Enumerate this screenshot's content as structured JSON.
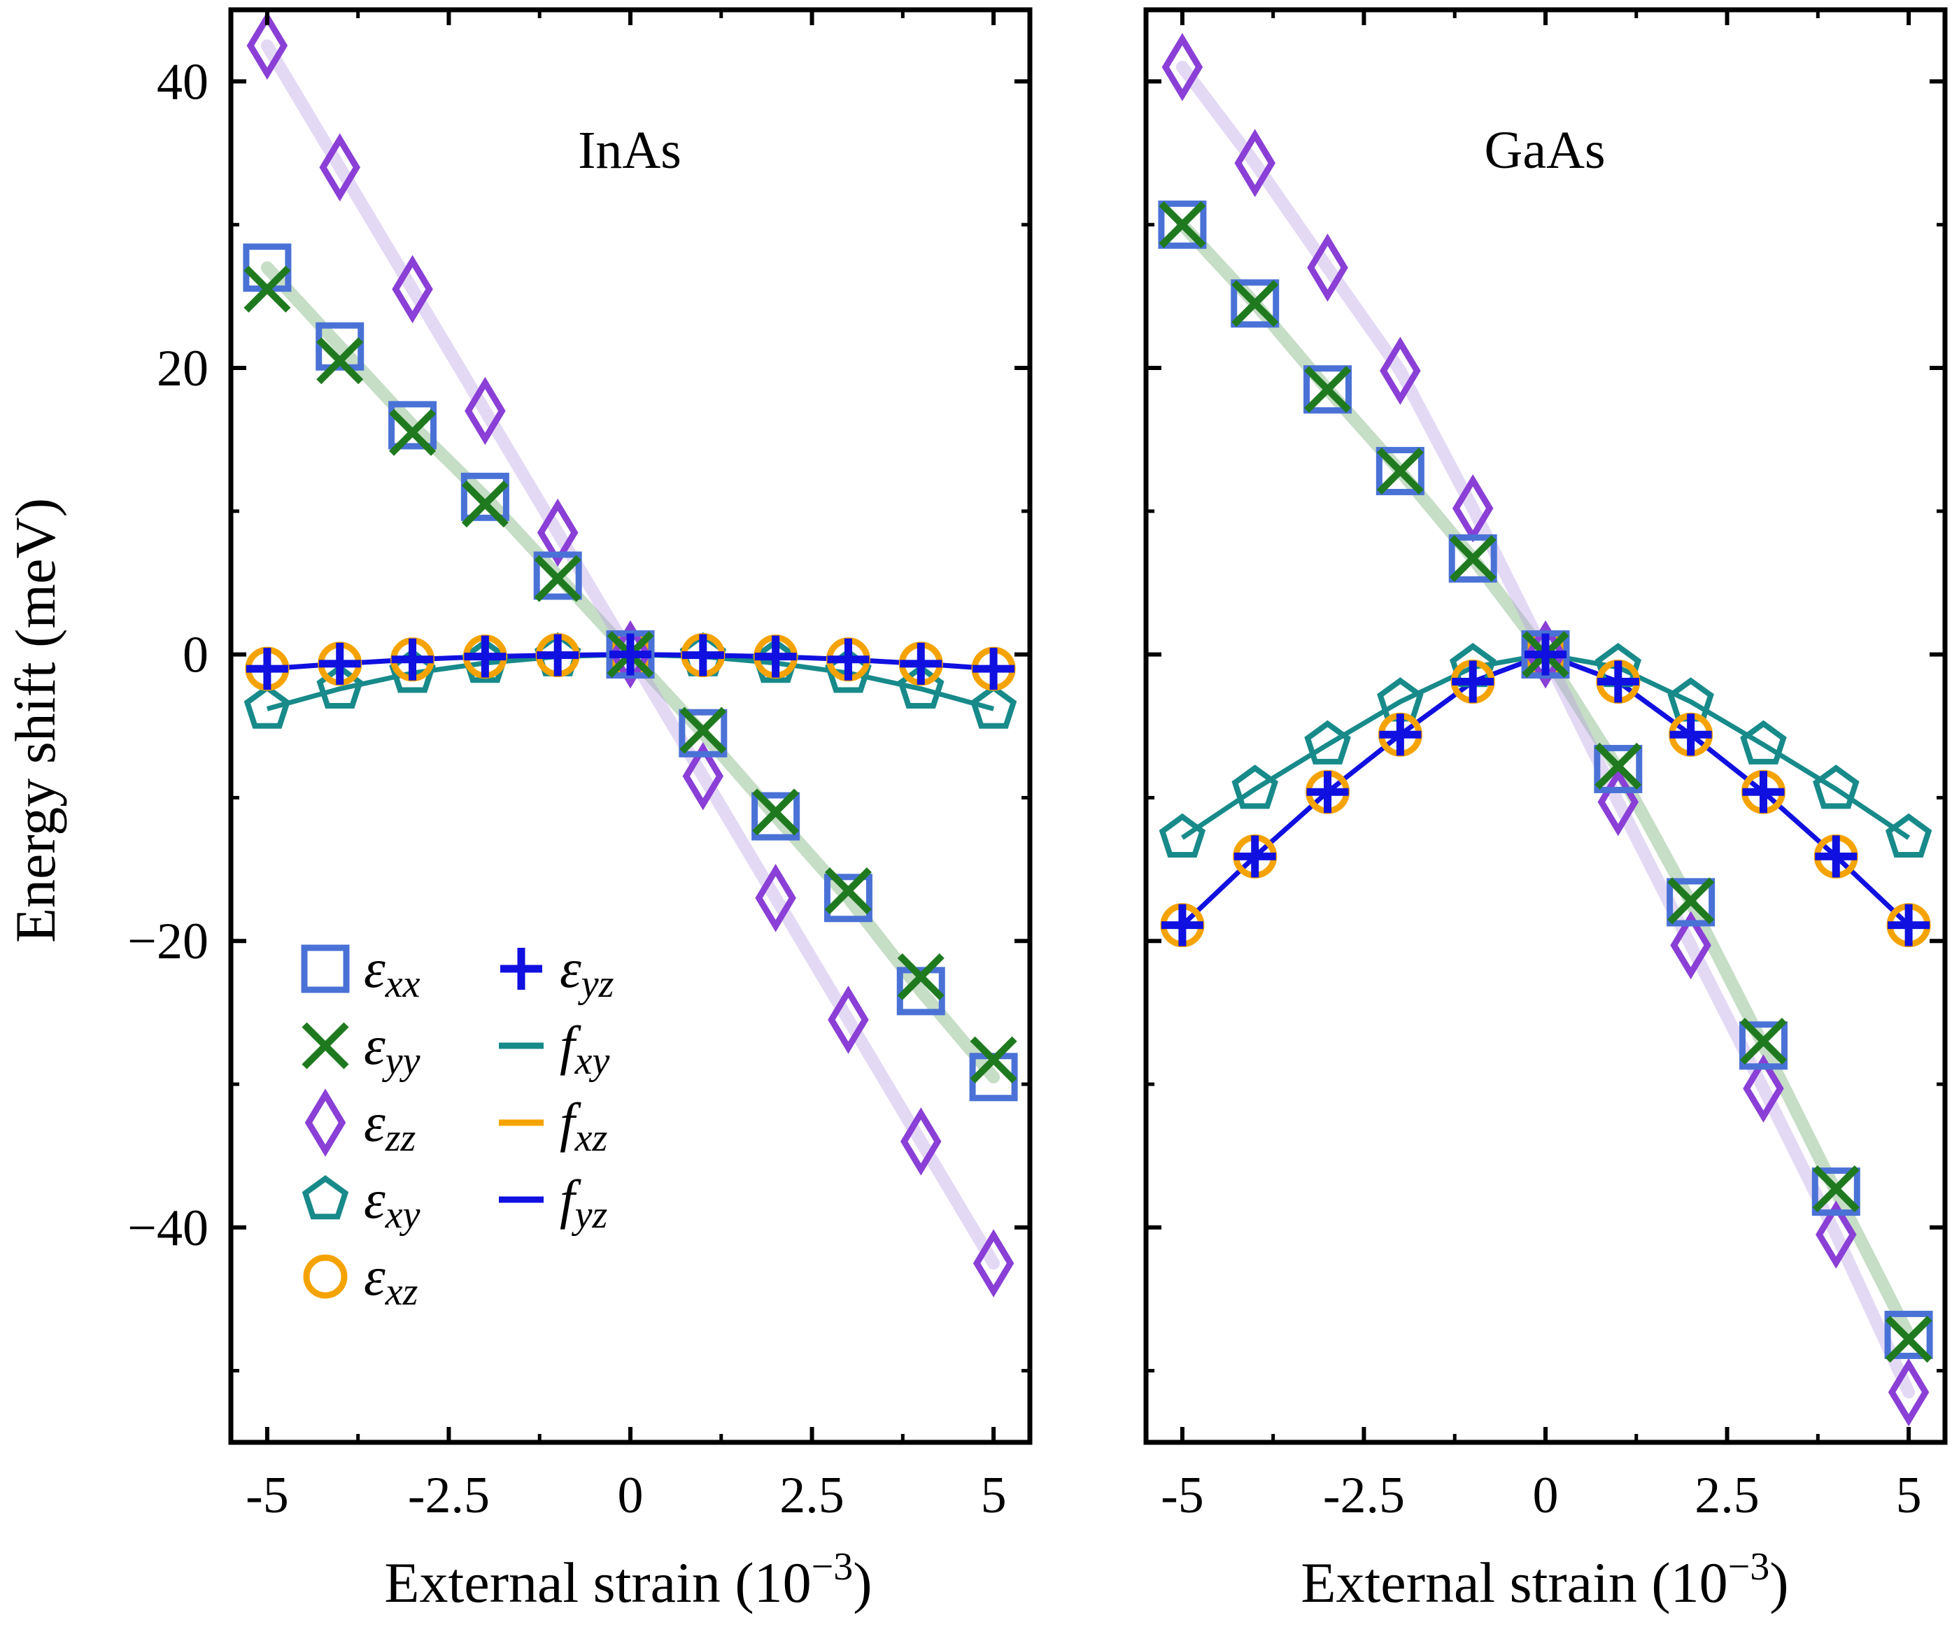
{
  "colors": {
    "exx": "#4a72d6",
    "eyy": "#1f7a1f",
    "ezz": "#8a3fd6",
    "exy": "#188a8a",
    "exz": "#f5a300",
    "eyz": "#1010e0",
    "fxy_line": "#188a8a",
    "fxz_line": "#f5a300",
    "fyz_line": "#1010e0",
    "green_band": "#6aa56a",
    "purple_band": "#b79be6"
  },
  "figure": {
    "ylabel": "Energy shift (meV)",
    "xlabel_text": "External strain (10",
    "xlabel_exponent": "−3",
    "xlabel_close": ")"
  },
  "legend": {
    "entries": [
      {
        "key": "exx",
        "symbol": "ε",
        "sub": "xx",
        "marker": "square"
      },
      {
        "key": "eyy",
        "symbol": "ε",
        "sub": "yy",
        "marker": "x"
      },
      {
        "key": "ezz",
        "symbol": "ε",
        "sub": "zz",
        "marker": "diamond"
      },
      {
        "key": "exy",
        "symbol": "ε",
        "sub": "xy",
        "marker": "pentagon"
      },
      {
        "key": "exz",
        "symbol": "ε",
        "sub": "xz",
        "marker": "circle"
      },
      {
        "key": "eyz",
        "symbol": "ε",
        "sub": "yz",
        "marker": "plus"
      },
      {
        "key": "fxy",
        "symbol": "f",
        "sub": "xy",
        "marker": "line"
      },
      {
        "key": "fxz",
        "symbol": "f",
        "sub": "xz",
        "marker": "line"
      },
      {
        "key": "fyz",
        "symbol": "f",
        "sub": "yz",
        "marker": "line"
      }
    ]
  },
  "chart_data": [
    {
      "type": "scatter",
      "title": "InAs",
      "xlabel": "External strain (10^-3)",
      "ylabel": "Energy shift (meV)",
      "xlim": [
        -5.5,
        5.5
      ],
      "ylim": [
        -55,
        45
      ],
      "xticks": [
        -5,
        -2.5,
        0,
        2.5,
        5
      ],
      "xtick_labels": [
        "-5",
        "-2.5",
        "0",
        "2.5",
        "5"
      ],
      "yticks": [
        -40,
        -20,
        0,
        20,
        40
      ],
      "ytick_labels": [
        "−40",
        "−20",
        "0",
        "20",
        "40"
      ],
      "x": [
        -5,
        -4,
        -3,
        -2,
        -1,
        0,
        1,
        2,
        3,
        4,
        5
      ],
      "series": [
        {
          "name": "εxx",
          "key": "exx",
          "marker": "square",
          "values": [
            27,
            21.5,
            16,
            11,
            5.5,
            0,
            -5.5,
            -11.3,
            -17,
            -23.5,
            -29.5
          ]
        },
        {
          "name": "εyy",
          "key": "eyy",
          "marker": "x",
          "values": [
            25.5,
            20.5,
            15.5,
            10.5,
            5.3,
            0,
            -5.3,
            -11,
            -16.5,
            -22.5,
            -28.3
          ]
        },
        {
          "name": "εzz",
          "key": "ezz",
          "marker": "diamond",
          "values": [
            42.5,
            34,
            25.5,
            17,
            8.5,
            0,
            -8.5,
            -17,
            -25.5,
            -34,
            -42.5
          ]
        },
        {
          "name": "εxy",
          "key": "exy",
          "marker": "pentagon",
          "values": [
            -3.8,
            -2.4,
            -1.3,
            -0.6,
            -0.15,
            0,
            -0.15,
            -0.6,
            -1.3,
            -2.4,
            -3.8
          ]
        },
        {
          "name": "εxz",
          "key": "exz",
          "marker": "circle",
          "values": [
            -1,
            -0.65,
            -0.35,
            -0.15,
            -0.05,
            0,
            -0.05,
            -0.15,
            -0.35,
            -0.65,
            -1
          ]
        },
        {
          "name": "εyz",
          "key": "eyz",
          "marker": "plus",
          "values": [
            -1,
            -0.65,
            -0.35,
            -0.15,
            -0.05,
            0,
            -0.05,
            -0.15,
            -0.35,
            -0.65,
            -1
          ]
        }
      ]
    },
    {
      "type": "scatter",
      "title": "GaAs",
      "xlabel": "External strain (10^-3)",
      "ylabel": "",
      "xlim": [
        -5.5,
        5.5
      ],
      "ylim": [
        -55,
        45
      ],
      "xticks": [
        -5,
        -2.5,
        0,
        2.5,
        5
      ],
      "xtick_labels": [
        "-5",
        "-2.5",
        "0",
        "2.5",
        "5"
      ],
      "yticks": [
        -40,
        -20,
        0,
        20,
        40
      ],
      "ytick_labels": [],
      "x": [
        -5,
        -4,
        -3,
        -2,
        -1,
        0,
        1,
        2,
        3,
        4,
        5
      ],
      "series": [
        {
          "name": "εxx",
          "key": "exx",
          "marker": "square",
          "values": [
            30,
            24.5,
            18.5,
            12.8,
            6.7,
            0,
            -8,
            -17.3,
            -27.3,
            -37.5,
            -47.5
          ]
        },
        {
          "name": "εyy",
          "key": "eyy",
          "marker": "x",
          "values": [
            30,
            24.5,
            18.5,
            12.8,
            6.7,
            0,
            -7.8,
            -17.2,
            -27,
            -37.3,
            -47.8
          ]
        },
        {
          "name": "εzz",
          "key": "ezz",
          "marker": "diamond",
          "values": [
            41,
            34.3,
            27,
            19.8,
            10.2,
            0,
            -10.3,
            -20.3,
            -30.3,
            -40.5,
            -51.5
          ]
        },
        {
          "name": "εxy",
          "key": "exy",
          "marker": "pentagon",
          "values": [
            -12.8,
            -9.4,
            -6.3,
            -3.3,
            -0.9,
            0,
            -0.9,
            -3.3,
            -6.3,
            -9.4,
            -12.8
          ]
        },
        {
          "name": "εxz",
          "key": "exz",
          "marker": "circle",
          "values": [
            -18.9,
            -14.1,
            -9.6,
            -5.6,
            -1.9,
            0,
            -1.9,
            -5.6,
            -9.6,
            -14.1,
            -18.9
          ]
        },
        {
          "name": "εyz",
          "key": "eyz",
          "marker": "plus",
          "values": [
            -18.9,
            -14.1,
            -9.6,
            -5.6,
            -1.9,
            0,
            -1.9,
            -5.6,
            -9.6,
            -14.1,
            -18.9
          ]
        }
      ]
    }
  ]
}
